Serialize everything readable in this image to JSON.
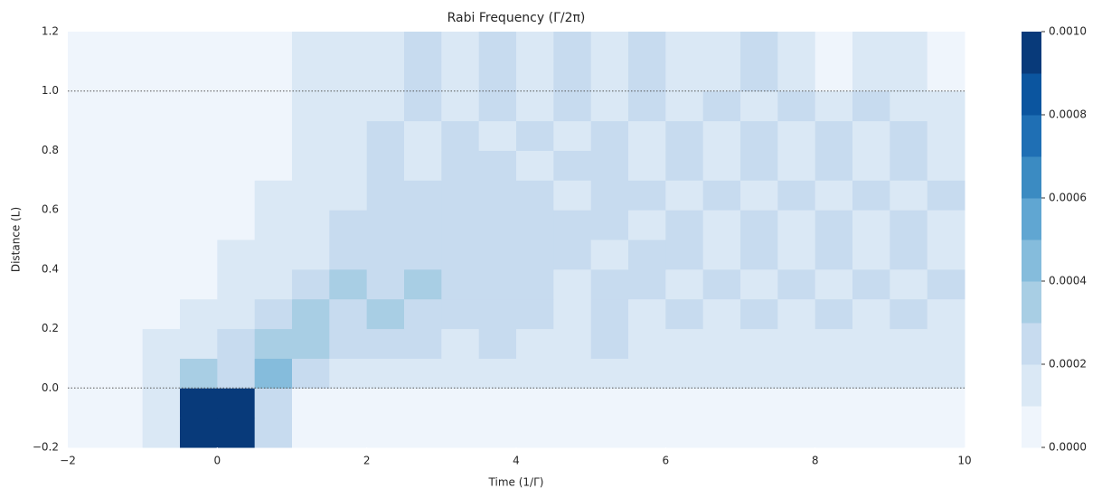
{
  "chart_data": {
    "type": "contour",
    "title": "Rabi Frequency (Γ/2π)",
    "x_label": "Time (1/Γ)",
    "y_label": "Distance (L)",
    "xlim": [
      -2,
      10
    ],
    "ylim": [
      -0.2,
      1.2
    ],
    "xticks": [
      {
        "value": -2,
        "label": "−2"
      },
      0,
      2,
      4,
      6,
      8,
      10
    ],
    "yticks": [
      {
        "value": -0.2,
        "label": "−0.2"
      },
      {
        "value": 0,
        "label": "0.0"
      },
      0.2,
      0.4,
      0.6,
      0.8,
      {
        "value": 1,
        "label": "1.0"
      },
      1.2
    ],
    "hlines": [
      0,
      1
    ],
    "levels": [
      0,
      0.0001,
      0.0002,
      0.0003,
      0.0004,
      0.0005,
      0.0006,
      0.0007,
      0.0008,
      0.0009,
      0.001
    ],
    "colors": [
      "#eff5fc",
      "#dae8f5",
      "#c7dbef",
      "#a8cee4",
      "#85bcdc",
      "#60a6d2",
      "#3b8bc2",
      "#1f6fb4",
      "#0b559f",
      "#083a7a"
    ],
    "colorbar_ticks": [
      {
        "value": 0,
        "label": "0.0000"
      },
      0.0002,
      0.0004,
      0.0006,
      0.0008,
      {
        "value": 0.001,
        "label": "0.0010"
      }
    ],
    "x": [
      -1.75,
      -1.25,
      -0.75,
      -0.25,
      0.25,
      0.75,
      1.25,
      1.75,
      2.25,
      2.75,
      3.25,
      3.75,
      4.25,
      4.75,
      5.25,
      5.75,
      6.25,
      6.75,
      7.25,
      7.75,
      8.25,
      8.75,
      9.25,
      9.75
    ],
    "y": [
      -0.15,
      -0.05,
      0.05,
      0.15,
      0.25,
      0.35,
      0.45,
      0.55,
      0.65,
      0.75,
      0.85,
      0.95,
      1.05,
      1.15
    ],
    "z": [
      [
        5e-05,
        5e-05,
        0.00015,
        0.0009,
        0.0009,
        0.00025,
        5e-05,
        5e-05,
        5e-05,
        5e-05,
        5e-05,
        5e-05,
        5e-05,
        5e-05,
        5e-05,
        5e-05,
        5e-05,
        5e-05,
        5e-05,
        5e-05,
        5e-05,
        5e-05,
        5e-05,
        5e-05
      ],
      [
        5e-05,
        5e-05,
        0.00015,
        0.0009,
        0.0009,
        0.00025,
        5e-05,
        5e-05,
        5e-05,
        5e-05,
        5e-05,
        5e-05,
        5e-05,
        5e-05,
        5e-05,
        5e-05,
        5e-05,
        5e-05,
        5e-05,
        5e-05,
        5e-05,
        5e-05,
        5e-05,
        5e-05
      ],
      [
        5e-05,
        5e-05,
        0.00015,
        0.0003,
        0.0002,
        0.0004,
        0.0002,
        0.00015,
        0.0001,
        0.0001,
        0.0001,
        0.0001,
        0.0001,
        0.0001,
        0.0001,
        0.0001,
        0.0001,
        0.0001,
        0.0001,
        0.0001,
        0.0001,
        0.0001,
        0.0001,
        0.0001
      ],
      [
        5e-05,
        5e-05,
        0.0001,
        0.00015,
        0.0002,
        0.0003,
        0.00035,
        0.00025,
        0.0002,
        0.0002,
        0.00015,
        0.0002,
        0.00015,
        0.00015,
        0.0002,
        0.00015,
        0.00015,
        0.00015,
        0.00015,
        0.00015,
        0.00015,
        0.00015,
        0.00015,
        0.00015
      ],
      [
        5e-05,
        5e-05,
        5e-05,
        0.0001,
        0.00015,
        0.0002,
        0.0003,
        0.00025,
        0.0003,
        0.00025,
        0.0002,
        0.00025,
        0.0002,
        0.00015,
        0.0002,
        0.00015,
        0.0002,
        0.00015,
        0.0002,
        0.00015,
        0.0002,
        0.00015,
        0.0002,
        0.00015
      ],
      [
        5e-05,
        5e-05,
        5e-05,
        5e-05,
        0.00015,
        0.00015,
        0.0002,
        0.0003,
        0.00025,
        0.0003,
        0.0002,
        0.00025,
        0.0002,
        0.00015,
        0.0002,
        0.0002,
        0.00015,
        0.0002,
        0.00015,
        0.0002,
        0.00015,
        0.0002,
        0.00015,
        0.0002
      ],
      [
        5e-05,
        5e-05,
        5e-05,
        5e-05,
        0.0001,
        0.00015,
        0.00015,
        0.0002,
        0.00025,
        0.00025,
        0.00025,
        0.0002,
        0.00025,
        0.0002,
        0.00015,
        0.0002,
        0.0002,
        0.00015,
        0.0002,
        0.00015,
        0.0002,
        0.00015,
        0.0002,
        0.00015
      ],
      [
        5e-05,
        5e-05,
        5e-05,
        5e-05,
        5e-05,
        0.0001,
        0.00015,
        0.0002,
        0.0002,
        0.00025,
        0.00025,
        0.0002,
        0.0002,
        0.0002,
        0.0002,
        0.00015,
        0.0002,
        0.00015,
        0.0002,
        0.00015,
        0.0002,
        0.00015,
        0.0002,
        0.00015
      ],
      [
        5e-05,
        5e-05,
        5e-05,
        5e-05,
        5e-05,
        0.0001,
        0.00015,
        0.00015,
        0.0002,
        0.0002,
        0.00025,
        0.0002,
        0.0002,
        0.00015,
        0.0002,
        0.0002,
        0.00015,
        0.0002,
        0.00015,
        0.0002,
        0.00015,
        0.0002,
        0.00015,
        0.0002
      ],
      [
        5e-05,
        5e-05,
        5e-05,
        5e-05,
        5e-05,
        5e-05,
        0.00015,
        0.00015,
        0.0002,
        0.00015,
        0.0002,
        0.0002,
        0.00015,
        0.0002,
        0.0002,
        0.00015,
        0.0002,
        0.00015,
        0.0002,
        0.00015,
        0.0002,
        0.00015,
        0.0002,
        0.00015
      ],
      [
        5e-05,
        5e-05,
        5e-05,
        5e-05,
        5e-05,
        5e-05,
        0.0001,
        0.00015,
        0.0002,
        0.00015,
        0.0002,
        0.00015,
        0.0002,
        0.00015,
        0.0002,
        0.00015,
        0.0002,
        0.00015,
        0.0002,
        0.00015,
        0.0002,
        0.00015,
        0.0002,
        0.00015
      ],
      [
        5e-05,
        5e-05,
        5e-05,
        5e-05,
        5e-05,
        5e-05,
        0.0001,
        0.00015,
        0.00015,
        0.0002,
        0.00015,
        0.0002,
        0.00015,
        0.0002,
        0.00015,
        0.0002,
        0.00015,
        0.0002,
        0.00015,
        0.0002,
        0.00015,
        0.0002,
        0.00015,
        0.00015
      ],
      [
        5e-05,
        5e-05,
        5e-05,
        5e-05,
        5e-05,
        5e-05,
        0.00015,
        0.0001,
        0.00015,
        0.0002,
        0.00015,
        0.0002,
        0.0001,
        0.0002,
        0.00015,
        0.0002,
        0.0001,
        0.00015,
        0.0002,
        0.00015,
        5e-05,
        0.00015,
        0.00015,
        5e-05
      ],
      [
        5e-05,
        5e-05,
        5e-05,
        5e-05,
        5e-05,
        5e-05,
        0.00015,
        0.0001,
        0.00015,
        0.0002,
        0.00015,
        0.0002,
        0.0001,
        0.0002,
        0.00015,
        0.0002,
        0.0001,
        0.00015,
        0.0002,
        0.00015,
        5e-05,
        0.00015,
        0.00015,
        5e-05
      ]
    ]
  }
}
